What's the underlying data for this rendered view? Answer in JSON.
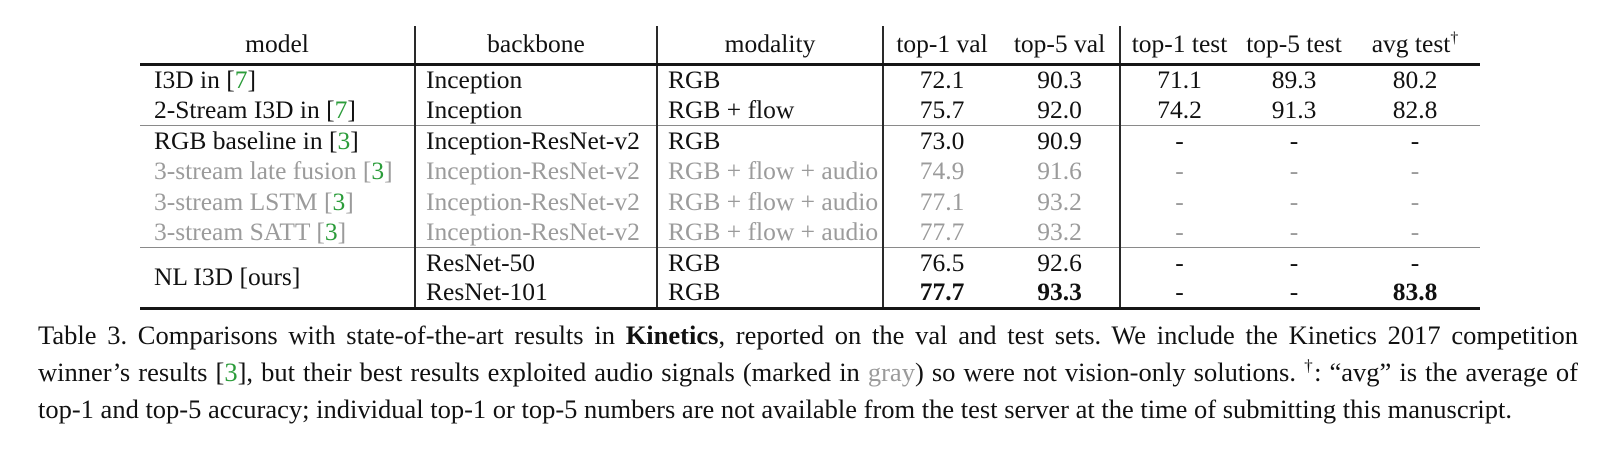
{
  "colors": {
    "citation_green": "#2b9c3a",
    "muted_gray": "#9b9b9b",
    "text_ink": "#111111"
  },
  "paper_table": {
    "headers": [
      {
        "label": "model"
      },
      {
        "label": "backbone"
      },
      {
        "label": "modality"
      },
      {
        "label": "top-1 val"
      },
      {
        "label": "top-5 val"
      },
      {
        "label": "top-1 test"
      },
      {
        "label": "top-5 test"
      },
      {
        "label": "avg test",
        "sup": "†"
      }
    ],
    "rows": [
      {
        "model": {
          "pre": "I3D in [",
          "cite": "7",
          "post": "]"
        },
        "backbone": "Inception",
        "modality": "RGB",
        "values": [
          "72.1",
          "90.3",
          "71.1",
          "89.3",
          "80.2"
        ],
        "bold": [
          0,
          0,
          0,
          0,
          0
        ],
        "gray": false,
        "group_start": false
      },
      {
        "model": {
          "pre": "2-Stream I3D in [",
          "cite": "7",
          "post": "]"
        },
        "backbone": "Inception",
        "modality": "RGB + flow",
        "values": [
          "75.7",
          "92.0",
          "74.2",
          "91.3",
          "82.8"
        ],
        "bold": [
          0,
          0,
          0,
          0,
          0
        ],
        "gray": false,
        "group_start": false
      },
      {
        "model": {
          "pre": "RGB baseline in [",
          "cite": "3",
          "post": "]"
        },
        "backbone": "Inception-ResNet-v2",
        "modality": "RGB",
        "values": [
          "73.0",
          "90.9",
          "-",
          "-",
          "-"
        ],
        "bold": [
          0,
          0,
          0,
          0,
          0
        ],
        "gray": false,
        "group_start": true
      },
      {
        "model": {
          "pre": "3-stream late fusion [",
          "cite": "3",
          "post": "]"
        },
        "backbone": "Inception-ResNet-v2",
        "modality": "RGB + flow + audio",
        "values": [
          "74.9",
          "91.6",
          "-",
          "-",
          "-"
        ],
        "bold": [
          0,
          0,
          0,
          0,
          0
        ],
        "gray": true,
        "group_start": false
      },
      {
        "model": {
          "pre": "3-stream LSTM [",
          "cite": "3",
          "post": "]"
        },
        "backbone": "Inception-ResNet-v2",
        "modality": "RGB + flow + audio",
        "values": [
          "77.1",
          "93.2",
          "-",
          "-",
          "-"
        ],
        "bold": [
          0,
          0,
          0,
          0,
          0
        ],
        "gray": true,
        "group_start": false
      },
      {
        "model": {
          "pre": "3-stream SATT [",
          "cite": "3",
          "post": "]"
        },
        "backbone": "Inception-ResNet-v2",
        "modality": "RGB + flow + audio",
        "values": [
          "77.7",
          "93.2",
          "-",
          "-",
          "-"
        ],
        "bold": [
          0,
          0,
          0,
          0,
          0
        ],
        "gray": true,
        "group_start": false
      },
      {
        "model": {
          "pre": "NL I3D [ours]",
          "cite": null,
          "post": "",
          "rowspan": 2
        },
        "backbone": "ResNet-50",
        "modality": "RGB",
        "values": [
          "76.5",
          "92.6",
          "-",
          "-",
          "-"
        ],
        "bold": [
          0,
          0,
          0,
          0,
          0
        ],
        "gray": false,
        "group_start": true
      },
      {
        "model": null,
        "backbone": "ResNet-101",
        "modality": "RGB",
        "values": [
          "77.7",
          "93.3",
          "-",
          "-",
          "83.8"
        ],
        "bold": [
          1,
          1,
          0,
          0,
          1
        ],
        "gray": false,
        "group_start": false
      }
    ]
  },
  "caption": {
    "parts": [
      {
        "t": "Table 3. Comparisons with state-of-the-art results in "
      },
      {
        "t": "Kinetics",
        "style": "bold"
      },
      {
        "t": ", reported on the val and test sets. We include the Kinetics 2017 competition winner’s results ["
      },
      {
        "t": "3",
        "style": "cite"
      },
      {
        "t": "], but their best results exploited audio signals (marked in "
      },
      {
        "t": "gray",
        "style": "grayword"
      },
      {
        "t": ") so were not vision-only solutions. "
      },
      {
        "t": "†",
        "style": "sup"
      },
      {
        "t": ": “avg” is the average of top-1 and top-5 accuracy; individual top-1 or top-5 numbers are not available from the test server at the time of submitting this manuscript."
      }
    ]
  }
}
